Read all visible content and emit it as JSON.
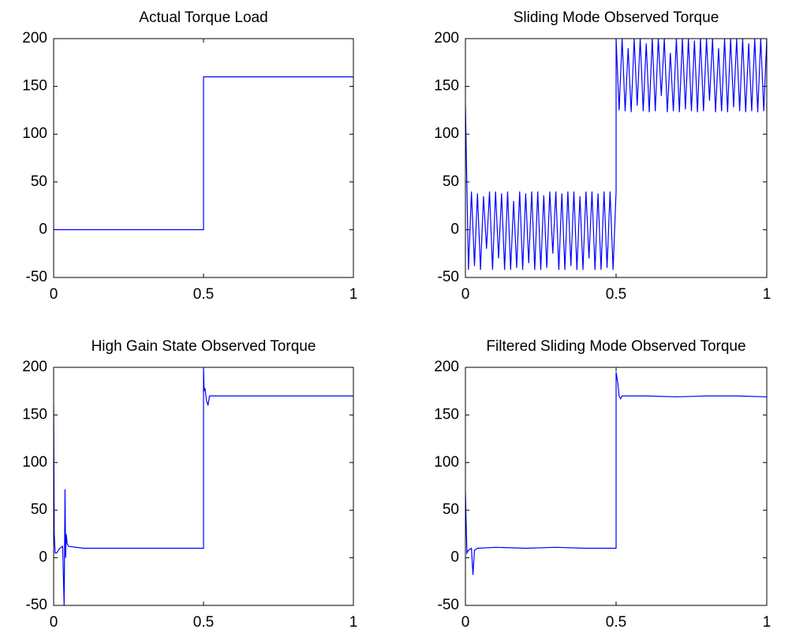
{
  "chart_data": [
    {
      "type": "line",
      "title": "Actual Torque Load",
      "x": [
        0,
        0.5,
        0.5,
        1
      ],
      "values": [
        0,
        0,
        160,
        160
      ],
      "color": "#0000ff",
      "xlim": [
        0,
        1
      ],
      "ylim": [
        -50,
        200
      ],
      "xticks": [
        0,
        0.5,
        1
      ],
      "yticks": [
        -50,
        0,
        50,
        100,
        150,
        200
      ]
    },
    {
      "type": "line",
      "title": "Sliding Mode Observed Torque",
      "x": [
        0,
        0.01,
        0.02,
        0.03,
        0.04,
        0.05,
        0.06,
        0.07,
        0.08,
        0.09,
        0.1,
        0.11,
        0.12,
        0.13,
        0.14,
        0.15,
        0.16,
        0.17,
        0.18,
        0.19,
        0.2,
        0.21,
        0.22,
        0.23,
        0.24,
        0.25,
        0.26,
        0.27,
        0.28,
        0.29,
        0.3,
        0.31,
        0.32,
        0.33,
        0.34,
        0.35,
        0.36,
        0.37,
        0.38,
        0.39,
        0.4,
        0.41,
        0.42,
        0.43,
        0.44,
        0.45,
        0.46,
        0.47,
        0.48,
        0.49,
        0.5,
        0.5,
        0.51,
        0.52,
        0.53,
        0.54,
        0.55,
        0.56,
        0.57,
        0.58,
        0.59,
        0.6,
        0.61,
        0.62,
        0.63,
        0.64,
        0.65,
        0.66,
        0.67,
        0.68,
        0.69,
        0.7,
        0.71,
        0.72,
        0.73,
        0.74,
        0.75,
        0.76,
        0.77,
        0.78,
        0.79,
        0.8,
        0.81,
        0.82,
        0.83,
        0.84,
        0.85,
        0.86,
        0.87,
        0.88,
        0.89,
        0.9,
        0.91,
        0.92,
        0.93,
        0.94,
        0.95,
        0.96,
        0.97,
        0.98,
        0.99,
        1
      ],
      "values": [
        130,
        -42,
        40,
        -38,
        38,
        -42,
        35,
        -20,
        40,
        -42,
        40,
        -30,
        38,
        -42,
        40,
        -42,
        30,
        -40,
        40,
        -42,
        38,
        -35,
        40,
        -42,
        40,
        -42,
        36,
        -40,
        40,
        -25,
        40,
        -42,
        38,
        -42,
        40,
        -38,
        40,
        -42,
        35,
        -42,
        40,
        -30,
        40,
        -42,
        38,
        -42,
        40,
        -40,
        40,
        -42,
        40,
        200,
        125,
        200,
        124,
        190,
        123,
        200,
        130,
        200,
        124,
        195,
        123,
        200,
        124,
        200,
        140,
        200,
        123,
        185,
        124,
        200,
        123,
        200,
        126,
        200,
        124,
        198,
        123,
        200,
        124,
        200,
        135,
        200,
        123,
        190,
        124,
        200,
        123,
        200,
        128,
        200,
        124,
        200,
        123,
        195,
        124,
        200,
        123,
        200,
        124,
        200
      ],
      "color": "#0000ff",
      "xlim": [
        0,
        1
      ],
      "ylim": [
        -50,
        200
      ],
      "xticks": [
        0,
        0.5,
        1
      ],
      "yticks": [
        -50,
        0,
        50,
        100,
        150,
        200
      ]
    },
    {
      "type": "line",
      "title": "High Gain State Observed Torque",
      "x": [
        0,
        0.002,
        0.005,
        0.01,
        0.02,
        0.03,
        0.035,
        0.038,
        0.04,
        0.042,
        0.045,
        0.05,
        0.1,
        0.5,
        0.5,
        0.502,
        0.505,
        0.51,
        0.515,
        0.52,
        0.53,
        1
      ],
      "values": [
        160,
        25,
        5,
        5,
        10,
        12,
        -50,
        72,
        0,
        25,
        15,
        12,
        10,
        10,
        200,
        175,
        178,
        165,
        160,
        170,
        170,
        170
      ],
      "color": "#0000ff",
      "xlim": [
        0,
        1
      ],
      "ylim": [
        -50,
        200
      ],
      "xticks": [
        0,
        0.5,
        1
      ],
      "yticks": [
        -50,
        0,
        50,
        100,
        150,
        200
      ]
    },
    {
      "type": "line",
      "title": "Filtered Sliding Mode Observed Torque",
      "x": [
        0,
        0.005,
        0.01,
        0.02,
        0.025,
        0.03,
        0.04,
        0.1,
        0.2,
        0.3,
        0.4,
        0.5,
        0.5,
        0.505,
        0.51,
        0.515,
        0.52,
        0.6,
        0.7,
        0.8,
        0.9,
        1
      ],
      "values": [
        68,
        5,
        8,
        10,
        -18,
        8,
        10,
        11,
        10,
        11,
        10,
        10,
        195,
        185,
        170,
        167,
        170,
        170,
        169,
        170,
        170,
        169
      ],
      "color": "#0000ff",
      "xlim": [
        0,
        1
      ],
      "ylim": [
        -50,
        200
      ],
      "xticks": [
        0,
        0.5,
        1
      ],
      "yticks": [
        -50,
        0,
        50,
        100,
        150,
        200
      ]
    }
  ]
}
